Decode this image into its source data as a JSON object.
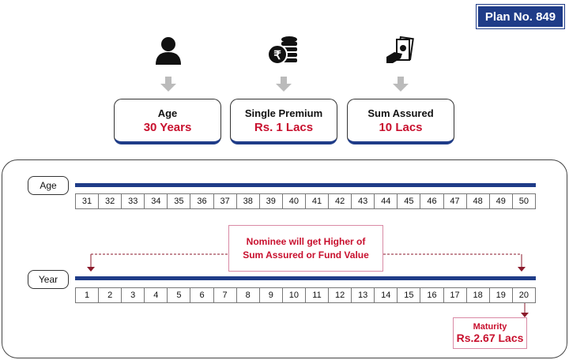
{
  "plan_badge": "Plan No. 849",
  "cards": [
    {
      "label": "Age",
      "value": "30 Years",
      "icon": "person-icon"
    },
    {
      "label": "Single Premium",
      "value": "Rs. 1 Lacs",
      "icon": "rupee-coins-icon"
    },
    {
      "label": "Sum Assured",
      "value": "10 Lacs",
      "icon": "hand-money-icon"
    }
  ],
  "timeline": {
    "age_label": "Age",
    "ages": [
      "31",
      "32",
      "33",
      "34",
      "35",
      "36",
      "37",
      "38",
      "39",
      "40",
      "41",
      "42",
      "43",
      "44",
      "45",
      "46",
      "47",
      "48",
      "49",
      "50"
    ],
    "year_label": "Year",
    "years": [
      "1",
      "2",
      "3",
      "4",
      "5",
      "6",
      "7",
      "8",
      "9",
      "10",
      "11",
      "12",
      "13",
      "14",
      "15",
      "16",
      "17",
      "18",
      "19",
      "20"
    ],
    "nominee_line1": "Nominee will get Higher of",
    "nominee_line2": "Sum Assured or Fund Value",
    "maturity_label": "Maturity",
    "maturity_value": "Rs.2.67 Lacs"
  },
  "colors": {
    "accent": "#1f3c88",
    "highlight": "#c8102e"
  }
}
